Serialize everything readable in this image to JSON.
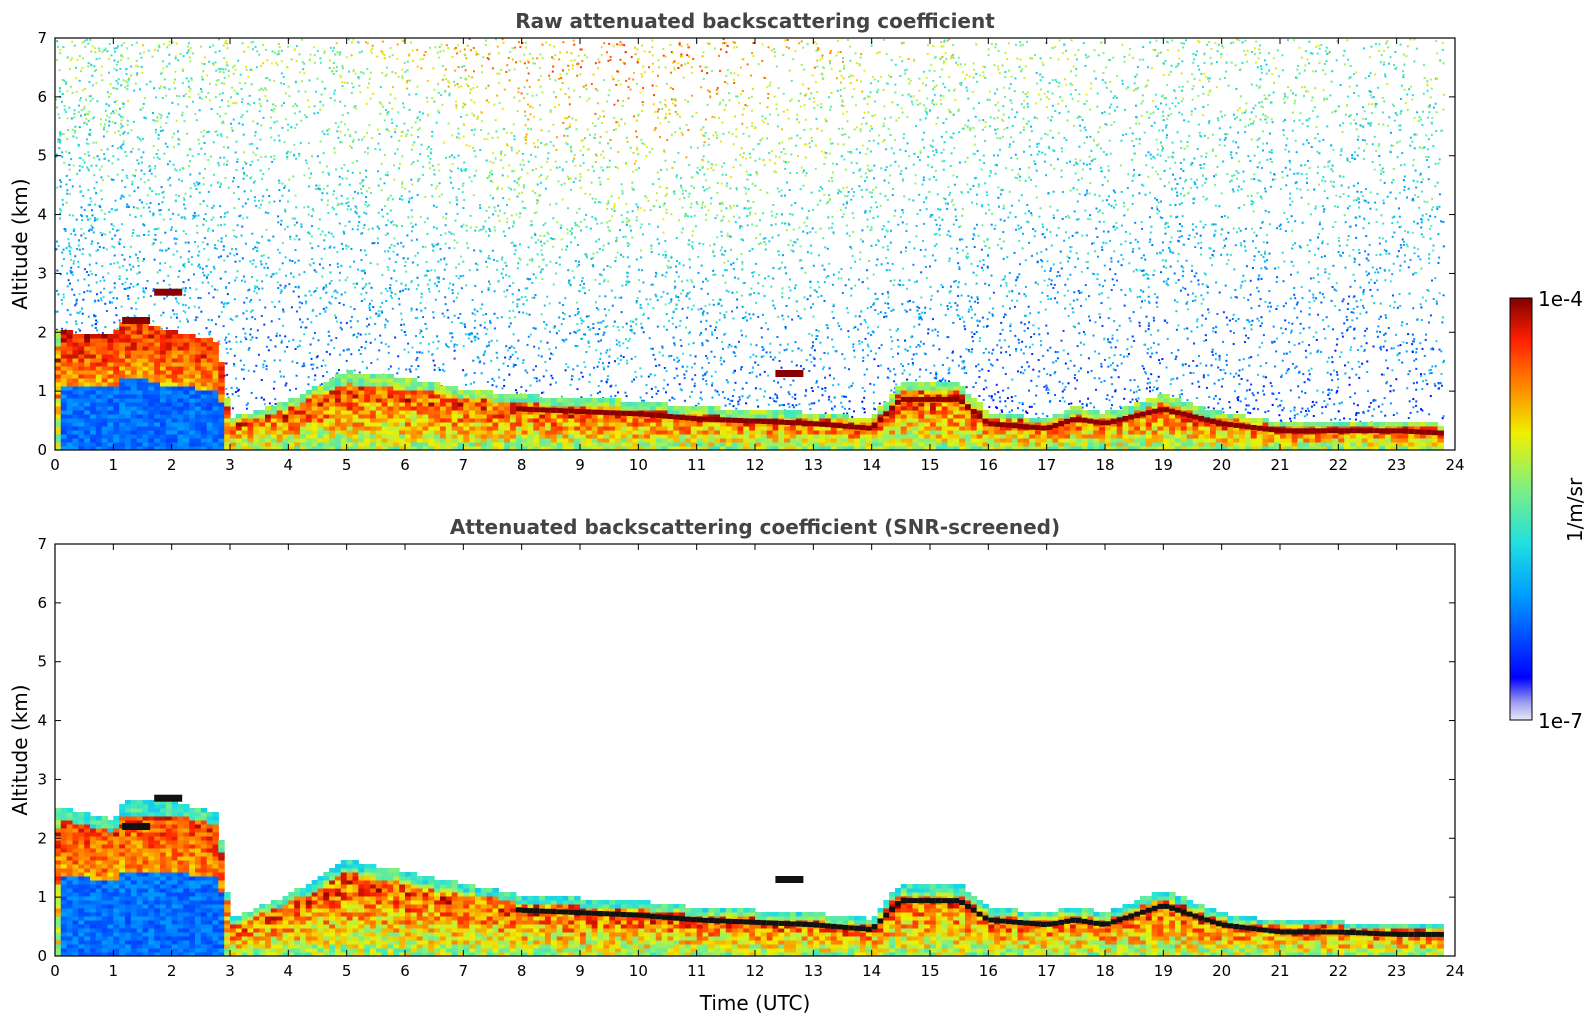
{
  "chart_data": [
    {
      "type": "heatmap",
      "title": "Raw attenuated backscattering coefficient",
      "xlabel": "",
      "ylabel": "Altitude (km)",
      "xlim": [
        0,
        24
      ],
      "ylim": [
        0,
        7
      ],
      "xticks": [
        "0",
        "1",
        "2",
        "3",
        "4",
        "5",
        "6",
        "7",
        "8",
        "9",
        "10",
        "11",
        "12",
        "13",
        "14",
        "15",
        "16",
        "17",
        "18",
        "19",
        "20",
        "21",
        "22",
        "23",
        "24"
      ],
      "yticks": [
        "0",
        "1",
        "2",
        "3",
        "4",
        "5",
        "6",
        "7"
      ],
      "noise": "high",
      "boundary_layer_top_km": [
        [
          0,
          2.0
        ],
        [
          1,
          1.9
        ],
        [
          1.2,
          2.2
        ],
        [
          2,
          2.0
        ],
        [
          2.8,
          1.8
        ],
        [
          3,
          0.5
        ],
        [
          4,
          0.8
        ],
        [
          5,
          1.3
        ],
        [
          6,
          1.2
        ],
        [
          7,
          1.0
        ],
        [
          8,
          0.9
        ],
        [
          9,
          0.85
        ],
        [
          10,
          0.8
        ],
        [
          11,
          0.7
        ],
        [
          12,
          0.65
        ],
        [
          13,
          0.6
        ],
        [
          14,
          0.5
        ],
        [
          14.5,
          1.1
        ],
        [
          15.5,
          1.1
        ],
        [
          16,
          0.6
        ],
        [
          17,
          0.5
        ],
        [
          17.5,
          0.7
        ],
        [
          18,
          0.6
        ],
        [
          19,
          0.9
        ],
        [
          20,
          0.6
        ],
        [
          21,
          0.45
        ],
        [
          22,
          0.45
        ],
        [
          23,
          0.45
        ],
        [
          23.8,
          0.4
        ]
      ]
    },
    {
      "type": "heatmap",
      "title": "Attenuated backscattering coefficient (SNR-screened)",
      "xlabel": "Time (UTC)",
      "ylabel": "Altitude (km)",
      "xlim": [
        0,
        24
      ],
      "ylim": [
        0,
        7
      ],
      "xticks": [
        "0",
        "1",
        "2",
        "3",
        "4",
        "5",
        "6",
        "7",
        "8",
        "9",
        "10",
        "11",
        "12",
        "13",
        "14",
        "15",
        "16",
        "17",
        "18",
        "19",
        "20",
        "21",
        "22",
        "23",
        "24"
      ],
      "yticks": [
        "0",
        "1",
        "2",
        "3",
        "4",
        "5",
        "6",
        "7"
      ],
      "noise": "screened",
      "boundary_layer_top_km": [
        [
          0,
          2.5
        ],
        [
          1,
          2.3
        ],
        [
          1.2,
          2.6
        ],
        [
          2,
          2.6
        ],
        [
          2.8,
          2.4
        ],
        [
          3,
          0.6
        ],
        [
          4,
          1.0
        ],
        [
          5,
          1.6
        ],
        [
          6,
          1.4
        ],
        [
          7,
          1.2
        ],
        [
          8,
          1.0
        ],
        [
          9,
          0.95
        ],
        [
          10,
          0.9
        ],
        [
          11,
          0.8
        ],
        [
          12,
          0.75
        ],
        [
          13,
          0.7
        ],
        [
          14,
          0.6
        ],
        [
          14.5,
          1.2
        ],
        [
          15.5,
          1.2
        ],
        [
          16,
          0.8
        ],
        [
          17,
          0.7
        ],
        [
          17.5,
          0.8
        ],
        [
          18,
          0.7
        ],
        [
          19,
          1.1
        ],
        [
          20,
          0.7
        ],
        [
          21,
          0.55
        ],
        [
          22,
          0.55
        ],
        [
          23,
          0.5
        ],
        [
          23.8,
          0.5
        ]
      ]
    }
  ],
  "colorbar": {
    "label": "1/m/sr",
    "max_label": "1e-4",
    "min_label": "1e-7",
    "colormap": "jet",
    "colors": [
      "#e8e8f8",
      "#0000ff",
      "#00a0ff",
      "#20e0e0",
      "#80f080",
      "#f0f000",
      "#ff8000",
      "#ff2000",
      "#800000"
    ]
  }
}
